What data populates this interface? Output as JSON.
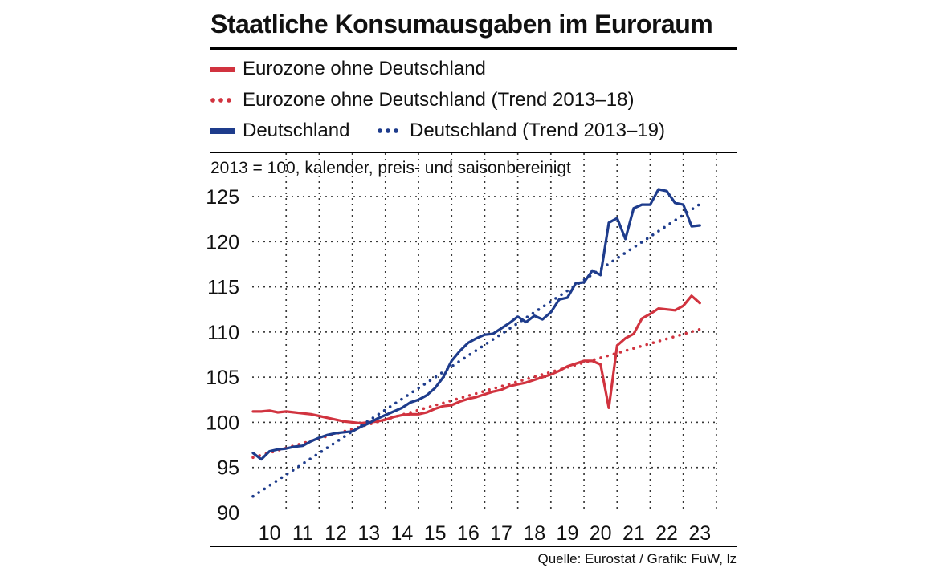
{
  "title": "Staatliche Konsumausgaben im Euroraum",
  "subtitle": "2013 = 100, kalender, preis- und saisonbereinigt",
  "source": "Quelle: Eurostat / Grafik: FuW, lz",
  "colors": {
    "red": "#d1333f",
    "blue": "#1e3c8c",
    "grid": "#222222"
  },
  "legend": [
    {
      "label": "Eurozone ohne Deutschland",
      "style": "solid",
      "color": "red"
    },
    {
      "label": "Eurozone ohne Deutschland (Trend 2013–18)",
      "style": "dotted",
      "color": "red"
    },
    {
      "label": "Deutschland",
      "style": "solid",
      "color": "blue"
    },
    {
      "label": "Deutschland (Trend 2013–19)",
      "style": "dotted",
      "color": "blue"
    }
  ],
  "chart_data": {
    "type": "line",
    "title": "Staatliche Konsumausgaben im Euroraum",
    "ylabel": "2013 = 100, kalender, preis- und saisonbereinigt",
    "xlabel": "",
    "ylim": [
      90,
      127
    ],
    "xlim": [
      2009.5,
      2023.6
    ],
    "yticks": [
      90,
      95,
      100,
      105,
      110,
      115,
      120,
      125
    ],
    "xtick_labels": [
      "10",
      "11",
      "12",
      "13",
      "14",
      "15",
      "16",
      "17",
      "18",
      "19",
      "20",
      "21",
      "22",
      "23"
    ],
    "xtick_positions": [
      2010,
      2011,
      2012,
      2013,
      2014,
      2015,
      2016,
      2017,
      2018,
      2019,
      2020,
      2021,
      2022,
      2023
    ],
    "grid": true,
    "series": [
      {
        "name": "Eurozone ohne Deutschland",
        "style": "solid",
        "color": "red",
        "points": [
          [
            2009.5,
            101.2
          ],
          [
            2009.75,
            101.2
          ],
          [
            2010.0,
            101.3
          ],
          [
            2010.25,
            101.1
          ],
          [
            2010.5,
            101.2
          ],
          [
            2010.75,
            101.1
          ],
          [
            2011.0,
            101.0
          ],
          [
            2011.25,
            100.9
          ],
          [
            2011.5,
            100.7
          ],
          [
            2011.75,
            100.5
          ],
          [
            2012.0,
            100.3
          ],
          [
            2012.25,
            100.1
          ],
          [
            2012.5,
            100.0
          ],
          [
            2012.75,
            99.9
          ],
          [
            2013.0,
            100.0
          ],
          [
            2013.25,
            100.1
          ],
          [
            2013.5,
            100.3
          ],
          [
            2013.75,
            100.6
          ],
          [
            2014.0,
            100.8
          ],
          [
            2014.25,
            100.9
          ],
          [
            2014.5,
            100.9
          ],
          [
            2014.75,
            101.1
          ],
          [
            2015.0,
            101.5
          ],
          [
            2015.25,
            101.8
          ],
          [
            2015.5,
            101.9
          ],
          [
            2015.75,
            102.3
          ],
          [
            2016.0,
            102.6
          ],
          [
            2016.25,
            102.8
          ],
          [
            2016.5,
            103.1
          ],
          [
            2016.75,
            103.4
          ],
          [
            2017.0,
            103.6
          ],
          [
            2017.25,
            104.0
          ],
          [
            2017.5,
            104.2
          ],
          [
            2017.75,
            104.4
          ],
          [
            2018.0,
            104.7
          ],
          [
            2018.25,
            105.0
          ],
          [
            2018.5,
            105.3
          ],
          [
            2018.75,
            105.7
          ],
          [
            2019.0,
            106.2
          ],
          [
            2019.25,
            106.5
          ],
          [
            2019.5,
            106.8
          ],
          [
            2019.75,
            106.8
          ],
          [
            2020.0,
            106.4
          ],
          [
            2020.25,
            101.6
          ],
          [
            2020.5,
            108.5
          ],
          [
            2020.75,
            109.3
          ],
          [
            2021.0,
            109.8
          ],
          [
            2021.25,
            111.5
          ],
          [
            2021.5,
            112.0
          ],
          [
            2021.75,
            112.6
          ],
          [
            2022.0,
            112.5
          ],
          [
            2022.25,
            112.4
          ],
          [
            2022.5,
            112.9
          ],
          [
            2022.75,
            114.0
          ],
          [
            2023.0,
            113.2
          ]
        ]
      },
      {
        "name": "Eurozone ohne Deutschland (Trend 2013–18)",
        "style": "dotted",
        "color": "red",
        "points": [
          [
            2009.5,
            96.1
          ],
          [
            2023.1,
            110.4
          ]
        ]
      },
      {
        "name": "Deutschland",
        "style": "solid",
        "color": "blue",
        "points": [
          [
            2009.5,
            96.6
          ],
          [
            2009.75,
            95.9
          ],
          [
            2010.0,
            96.8
          ],
          [
            2010.25,
            97.0
          ],
          [
            2010.5,
            97.1
          ],
          [
            2010.75,
            97.3
          ],
          [
            2011.0,
            97.4
          ],
          [
            2011.25,
            97.9
          ],
          [
            2011.5,
            98.3
          ],
          [
            2011.75,
            98.6
          ],
          [
            2012.0,
            98.8
          ],
          [
            2012.25,
            98.9
          ],
          [
            2012.5,
            99.0
          ],
          [
            2012.75,
            99.5
          ],
          [
            2013.0,
            99.9
          ],
          [
            2013.25,
            100.4
          ],
          [
            2013.5,
            100.8
          ],
          [
            2013.75,
            101.2
          ],
          [
            2014.0,
            101.6
          ],
          [
            2014.25,
            102.2
          ],
          [
            2014.5,
            102.5
          ],
          [
            2014.75,
            103.0
          ],
          [
            2015.0,
            103.8
          ],
          [
            2015.25,
            105.0
          ],
          [
            2015.5,
            106.8
          ],
          [
            2015.75,
            107.9
          ],
          [
            2016.0,
            108.8
          ],
          [
            2016.25,
            109.3
          ],
          [
            2016.5,
            109.7
          ],
          [
            2016.75,
            109.8
          ],
          [
            2017.0,
            110.4
          ],
          [
            2017.25,
            111.0
          ],
          [
            2017.5,
            111.7
          ],
          [
            2017.75,
            111.1
          ],
          [
            2018.0,
            111.8
          ],
          [
            2018.25,
            111.4
          ],
          [
            2018.5,
            112.2
          ],
          [
            2018.75,
            113.6
          ],
          [
            2019.0,
            113.8
          ],
          [
            2019.25,
            115.4
          ],
          [
            2019.5,
            115.5
          ],
          [
            2019.75,
            116.8
          ],
          [
            2020.0,
            116.3
          ],
          [
            2020.25,
            122.1
          ],
          [
            2020.5,
            122.6
          ],
          [
            2020.75,
            120.3
          ],
          [
            2021.0,
            123.7
          ],
          [
            2021.25,
            124.1
          ],
          [
            2021.5,
            124.1
          ],
          [
            2021.75,
            125.8
          ],
          [
            2022.0,
            125.6
          ],
          [
            2022.25,
            124.3
          ],
          [
            2022.5,
            124.1
          ],
          [
            2022.75,
            121.7
          ],
          [
            2023.0,
            121.8
          ]
        ]
      },
      {
        "name": "Deutschland (Trend 2013–19)",
        "style": "dotted",
        "color": "blue",
        "points": [
          [
            2009.5,
            91.8
          ],
          [
            2023.1,
            124.4
          ]
        ]
      }
    ]
  }
}
